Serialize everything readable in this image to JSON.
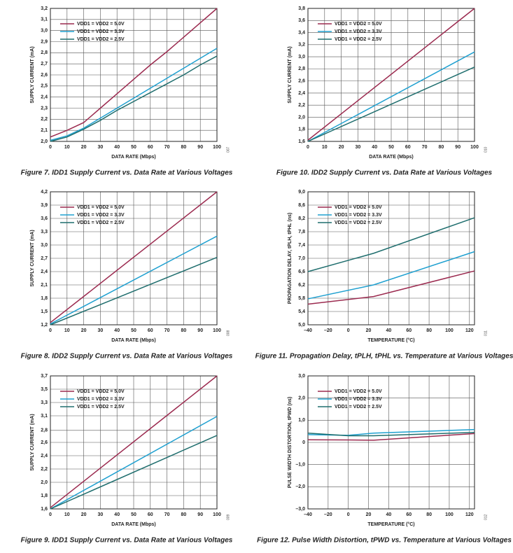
{
  "chart_data": [
    {
      "type": "line",
      "caption": "Figure 7. IDD1 Supply Current vs. Data Rate at Various Voltages",
      "figure_code": "007",
      "x_label": "DATA RATE (Mbps)",
      "y_label": "SUPPLY CURRENT (mA)",
      "x": [
        0,
        10,
        20,
        30,
        40,
        50,
        60,
        70,
        80,
        90,
        100
      ],
      "series": [
        {
          "name": "VDD1 = VDD2 = 5.0V",
          "color": "#9b2a4f",
          "values": [
            2.04,
            2.1,
            2.17,
            2.3,
            2.43,
            2.56,
            2.69,
            2.81,
            2.94,
            3.07,
            3.2
          ]
        },
        {
          "name": "VDD1 = VDD2 = 3.3V",
          "color": "#1fa0d0",
          "values": [
            2.01,
            2.05,
            2.12,
            2.21,
            2.3,
            2.39,
            2.48,
            2.57,
            2.66,
            2.75,
            2.84
          ]
        },
        {
          "name": "VDD1 = VDD2 = 2.5V",
          "color": "#1f6e6e",
          "values": [
            2.0,
            2.04,
            2.11,
            2.19,
            2.28,
            2.36,
            2.44,
            2.52,
            2.6,
            2.69,
            2.77
          ]
        }
      ],
      "xlim": [
        0,
        100
      ],
      "xticks": [
        0,
        10,
        20,
        30,
        40,
        50,
        60,
        70,
        80,
        90,
        100
      ],
      "ylim": [
        2.0,
        3.2
      ],
      "yticks": [
        {
          "value": 2.0,
          "label": "2,0"
        },
        {
          "value": 2.1,
          "label": "2,1"
        },
        {
          "value": 2.2,
          "label": "2,2"
        },
        {
          "value": 2.3,
          "label": "2,3"
        },
        {
          "value": 2.4,
          "label": "2,4"
        },
        {
          "value": 2.5,
          "label": "2,5"
        },
        {
          "value": 2.6,
          "label": "2,6"
        },
        {
          "value": 2.7,
          "label": "2,7"
        },
        {
          "value": 2.8,
          "label": "2,8"
        },
        {
          "value": 2.9,
          "label": "2,9"
        },
        {
          "value": 3.0,
          "label": "3,0"
        },
        {
          "value": 3.1,
          "label": "3,1"
        },
        {
          "value": 3.2,
          "label": "3,2"
        }
      ],
      "grid": true,
      "legend": "upper-left"
    },
    {
      "type": "line",
      "caption": "Figure 10. IDD2 Supply Current vs. Data Rate at Various Voltages",
      "figure_code": "010",
      "x_label": "DATA RATE (Mbps)",
      "y_label": "SUPPLY CURRENT (mA)",
      "x": [
        0,
        100
      ],
      "series": [
        {
          "name": "VDD1 = VDD2 = 5.0V",
          "color": "#9b2a4f",
          "values": [
            1.62,
            3.8
          ]
        },
        {
          "name": "VDD1 = VDD2 = 3.3V",
          "color": "#1fa0d0",
          "values": [
            1.6,
            3.08
          ]
        },
        {
          "name": "VDD1 = VDD2 = 2.5V",
          "color": "#1f6e6e",
          "values": [
            1.6,
            2.83
          ]
        }
      ],
      "xlim": [
        0,
        100
      ],
      "xticks": [
        0,
        10,
        20,
        30,
        40,
        50,
        60,
        70,
        80,
        90,
        100
      ],
      "ylim": [
        1.6,
        3.8
      ],
      "yticks": [
        {
          "value": 1.6,
          "label": "1,6"
        },
        {
          "value": 1.8,
          "label": "1,8"
        },
        {
          "value": 2.0,
          "label": "2,0"
        },
        {
          "value": 2.2,
          "label": "2,2"
        },
        {
          "value": 2.4,
          "label": "2,4"
        },
        {
          "value": 2.6,
          "label": "2,6"
        },
        {
          "value": 2.8,
          "label": "2,8"
        },
        {
          "value": 3.0,
          "label": "3,0"
        },
        {
          "value": 3.2,
          "label": "3,2"
        },
        {
          "value": 3.4,
          "label": "3,4"
        },
        {
          "value": 3.6,
          "label": "3,6"
        },
        {
          "value": 3.8,
          "label": "3,8"
        }
      ],
      "grid": true,
      "legend": "upper-left"
    },
    {
      "type": "line",
      "caption": "Figure 8. IDD2 Supply Current vs. Data Rate at Various Voltages",
      "figure_code": "008",
      "x_label": "DATA RATE (Mbps)",
      "y_label": "SUPPLY CURRENT (mA)",
      "x": [
        0,
        100
      ],
      "series": [
        {
          "name": "VDD1 = VDD2 = 5.0V",
          "color": "#9b2a4f",
          "values": [
            1.25,
            4.2
          ]
        },
        {
          "name": "VDD1 = VDD2 = 3.3V",
          "color": "#1fa0d0",
          "values": [
            1.22,
            3.2
          ]
        },
        {
          "name": "VDD1 = VDD2 = 2.5V",
          "color": "#1f6e6e",
          "values": [
            1.2,
            2.72
          ]
        }
      ],
      "xlim": [
        0,
        100
      ],
      "xticks": [
        0,
        10,
        20,
        30,
        40,
        50,
        60,
        70,
        80,
        90,
        100
      ],
      "ylim": [
        1.2,
        4.2
      ],
      "yticks": [
        {
          "value": 1.2,
          "label": "1,2"
        },
        {
          "value": 1.5,
          "label": "1,5"
        },
        {
          "value": 1.8,
          "label": "1,8"
        },
        {
          "value": 2.1,
          "label": "2,1"
        },
        {
          "value": 2.4,
          "label": "2,4"
        },
        {
          "value": 2.7,
          "label": "2,7"
        },
        {
          "value": 3.0,
          "label": "3,0"
        },
        {
          "value": 3.3,
          "label": "3,3"
        },
        {
          "value": 3.6,
          "label": "3,6"
        },
        {
          "value": 3.9,
          "label": "3,9"
        },
        {
          "value": 4.2,
          "label": "4,2"
        }
      ],
      "grid": true,
      "legend": "upper-left"
    },
    {
      "type": "line",
      "caption": "Figure 11. Propagation Delay, tPLH, tPHL vs. Temperature at Various Voltages",
      "figure_code": "011",
      "x_label": "TEMPERATURE (°C)",
      "y_label": "PROPAGATION DELAY, tPLH, tPHL (ns)",
      "x": [
        -40,
        25,
        125
      ],
      "series": [
        {
          "name": "VDD1 = VDD2 = 5.0V",
          "color": "#9b2a4f",
          "values": [
            5.62,
            5.85,
            6.62
          ]
        },
        {
          "name": "VDD1 = VDD2 = 3.3V",
          "color": "#1fa0d0",
          "values": [
            5.78,
            6.2,
            7.2
          ]
        },
        {
          "name": "VDD1 = VDD2 = 2.5V",
          "color": "#1f6e6e",
          "values": [
            6.6,
            7.15,
            8.22
          ]
        }
      ],
      "xlim": [
        -40,
        125
      ],
      "xticks": [
        {
          "value": -40,
          "label": "–40"
        },
        {
          "value": -20,
          "label": "–20"
        },
        0,
        20,
        40,
        60,
        80,
        100,
        120
      ],
      "ylim": [
        5.0,
        9.0
      ],
      "yticks": [
        {
          "value": 5.0,
          "label": "5,0"
        },
        {
          "value": 5.4,
          "label": "5,4"
        },
        {
          "value": 5.8,
          "label": "5,8"
        },
        {
          "value": 6.2,
          "label": "6,2"
        },
        {
          "value": 6.6,
          "label": "6,6"
        },
        {
          "value": 7.0,
          "label": "7,0"
        },
        {
          "value": 7.4,
          "label": "7,4"
        },
        {
          "value": 7.8,
          "label": "7,8"
        },
        {
          "value": 8.2,
          "label": "8,2"
        },
        {
          "value": 8.6,
          "label": "8,6"
        },
        {
          "value": 9.0,
          "label": "9,0"
        }
      ],
      "grid": true,
      "legend": "upper-left"
    },
    {
      "type": "line",
      "caption": "Figure 9. IDD1 Supply Current vs. Data Rate at Various Voltages",
      "figure_code": "009",
      "x_label": "DATA RATE (Mbps)",
      "y_label": "SUPPLY CURRENT (mA)",
      "x": [
        0,
        100
      ],
      "series": [
        {
          "name": "VDD1 = VDD2 = 5.0V",
          "color": "#9b2a4f",
          "values": [
            1.62,
            3.7
          ]
        },
        {
          "name": "VDD1 = VDD2 = 3.3V",
          "color": "#1fa0d0",
          "values": [
            1.6,
            3.06
          ]
        },
        {
          "name": "VDD1 = VDD2 = 2.5V",
          "color": "#1f6e6e",
          "values": [
            1.6,
            2.76
          ]
        }
      ],
      "xlim": [
        0,
        100
      ],
      "xticks": [
        0,
        10,
        20,
        30,
        40,
        50,
        60,
        70,
        80,
        90,
        100
      ],
      "ylim": [
        1.6,
        3.7
      ],
      "yticks": [
        {
          "value": 1.6,
          "label": "1,6"
        },
        {
          "value": 1.81,
          "label": "1,8"
        },
        {
          "value": 2.02,
          "label": "2,0"
        },
        {
          "value": 2.23,
          "label": "2,2"
        },
        {
          "value": 2.44,
          "label": "2,4"
        },
        {
          "value": 2.65,
          "label": "2,6"
        },
        {
          "value": 2.84,
          "label": "2,8"
        },
        {
          "value": 3.07,
          "label": "3,1"
        },
        {
          "value": 3.28,
          "label": "3,3"
        },
        {
          "value": 3.49,
          "label": "3,5"
        },
        {
          "value": 3.7,
          "label": "3,7"
        }
      ],
      "grid": true,
      "legend": "upper-left"
    },
    {
      "type": "line",
      "caption": "Figure 12. Pulse Width Distortion, tPWD vs. Temperature at Various Voltages",
      "figure_code": "012",
      "x_label": "TEMPERATURE (°C)",
      "y_label": "PULSE WIDTH DISTORTION, tPWD (ns)",
      "x": [
        -40,
        0,
        25,
        125
      ],
      "series": [
        {
          "name": "VDD1 = VDD2 = 5.0V",
          "color": "#9b2a4f",
          "values": [
            0.12,
            0.11,
            0.1,
            0.4
          ]
        },
        {
          "name": "VDD1 = VDD2 = 3.3V",
          "color": "#1fa0d0",
          "values": [
            0.35,
            0.32,
            0.42,
            0.58
          ]
        },
        {
          "name": "VDD1 = VDD2 = 2.5V",
          "color": "#1f6e6e",
          "values": [
            0.42,
            0.3,
            0.3,
            0.45
          ]
        }
      ],
      "xlim": [
        -40,
        125
      ],
      "xticks": [
        {
          "value": -40,
          "label": "–40"
        },
        {
          "value": -20,
          "label": "–20"
        },
        0,
        20,
        40,
        60,
        80,
        100,
        120
      ],
      "ylim": [
        -3.0,
        3.0
      ],
      "yticks": [
        {
          "value": -3.0,
          "label": "–3,0"
        },
        {
          "value": -2.0,
          "label": "–2,0"
        },
        {
          "value": -1.0,
          "label": "–1,0"
        },
        0,
        {
          "value": 1.0,
          "label": "1,0"
        },
        {
          "value": 2.0,
          "label": "2,0"
        },
        {
          "value": 3.0,
          "label": "3,0"
        }
      ],
      "grid": true,
      "legend": "upper-left"
    }
  ]
}
